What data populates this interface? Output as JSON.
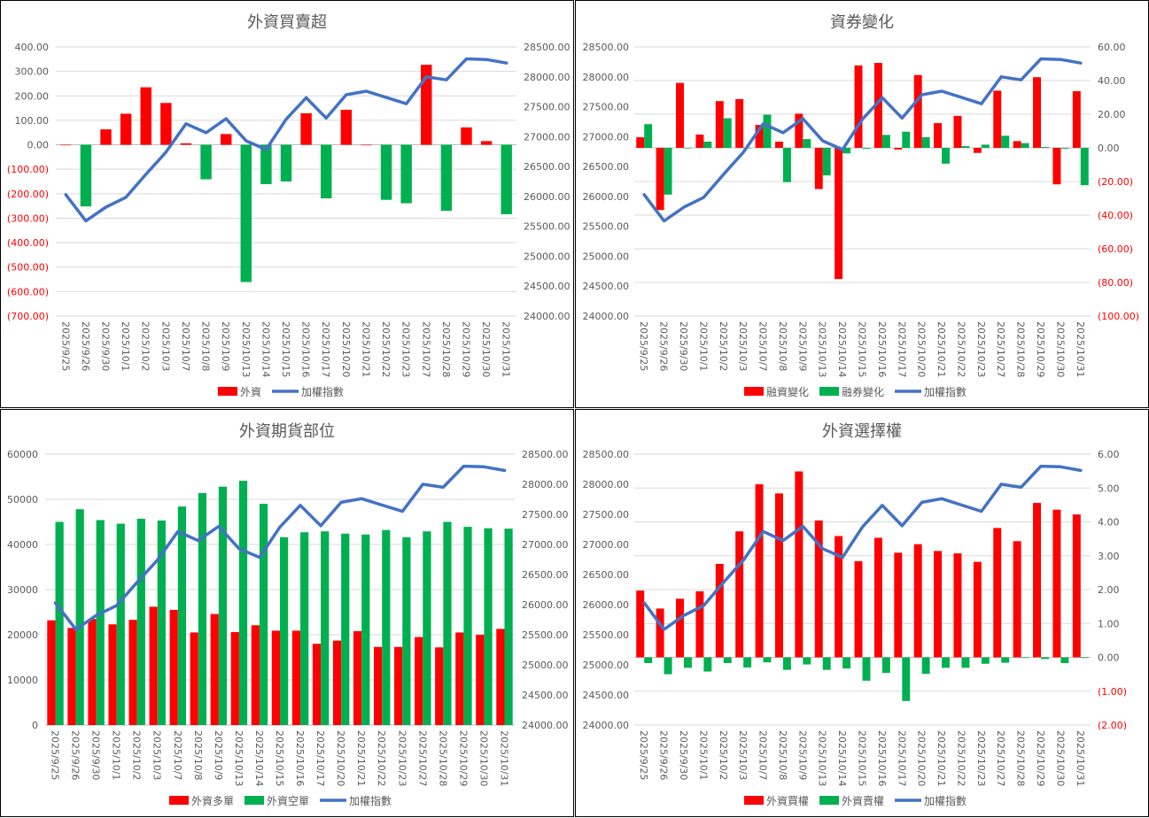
{
  "chart_data": [
    {
      "type": "bar",
      "title": "外資買賣超",
      "categories": [
        "2025/9/25",
        "2025/9/26",
        "2025/9/30",
        "2025/10/1",
        "2025/10/2",
        "2025/10/3",
        "2025/10/7",
        "2025/10/8",
        "2025/10/9",
        "2025/10/13",
        "2025/10/14",
        "2025/10/15",
        "2025/10/16",
        "2025/10/17",
        "2025/10/20",
        "2025/10/21",
        "2025/10/22",
        "2025/10/23",
        "2025/10/27",
        "2025/10/28",
        "2025/10/29",
        "2025/10/30",
        "2025/10/31"
      ],
      "bar_axis": {
        "side": "left",
        "ylim": [
          -700,
          400
        ],
        "ticks": [
          "400.00",
          "300.00",
          "200.00",
          "100.00",
          "0.00",
          "(100.00)",
          "(200.00)",
          "(300.00)",
          "(400.00)",
          "(500.00)",
          "(600.00)",
          "(700.00)"
        ]
      },
      "index_axis": {
        "side": "right",
        "ylim": [
          24000,
          28500
        ],
        "ticks": [
          "28500.00",
          "28000.00",
          "27500.00",
          "27000.00",
          "26500.00",
          "26000.00",
          "25500.00",
          "25000.00",
          "24500.00",
          "24000.00"
        ]
      },
      "bar_series": [
        {
          "name": "外資",
          "color": "#FF0000",
          "signed_colors": true,
          "values": [
            0,
            -252,
            63,
            127,
            235,
            171,
            6,
            -141,
            44,
            -561,
            -161,
            -150,
            129,
            -219,
            143,
            0,
            -225,
            -239,
            327,
            -270,
            71,
            15,
            -284
          ]
        }
      ],
      "line_series": {
        "name": "加權指數",
        "color": "#4472C4",
        "values": [
          26030,
          25590,
          25820,
          25985,
          26370,
          26740,
          27215,
          27065,
          27300,
          26930,
          26785,
          27290,
          27650,
          27310,
          27700,
          27760,
          27655,
          27550,
          28000,
          27950,
          28300,
          28290,
          28230
        ]
      }
    },
    {
      "type": "bar",
      "title": "資券變化",
      "categories": [
        "2025/9/25",
        "2025/9/26",
        "2025/9/30",
        "2025/10/1",
        "2025/10/2",
        "2025/10/3",
        "2025/10/7",
        "2025/10/8",
        "2025/10/9",
        "2025/10/13",
        "2025/10/14",
        "2025/10/15",
        "2025/10/16",
        "2025/10/17",
        "2025/10/20",
        "2025/10/21",
        "2025/10/22",
        "2025/10/23",
        "2025/10/27",
        "2025/10/28",
        "2025/10/29",
        "2025/10/30",
        "2025/10/31"
      ],
      "bar_axis": {
        "side": "right",
        "ylim": [
          -100,
          60
        ],
        "ticks": [
          "60.00",
          "40.00",
          "20.00",
          "0.00",
          "(20.00)",
          "(40.00)",
          "(60.00)",
          "(80.00)",
          "(100.00)"
        ]
      },
      "index_axis": {
        "side": "left",
        "ylim": [
          24000,
          28500
        ],
        "ticks": [
          "28500.00",
          "28000.00",
          "27500.00",
          "27000.00",
          "26500.00",
          "26000.00",
          "25500.00",
          "25000.00",
          "24500.00",
          "24000.00"
        ]
      },
      "bar_series": [
        {
          "name": "融資變化",
          "color": "#FF0000",
          "values": [
            6.3,
            -37,
            38.6,
            7.9,
            27.8,
            29,
            13.6,
            3.7,
            20.3,
            -24.5,
            -78,
            49,
            50.5,
            -1,
            43.3,
            14.7,
            19,
            -3,
            34,
            4,
            42,
            -21.7,
            33.7
          ]
        },
        {
          "name": "融券變化",
          "color": "#00B050",
          "values": [
            14.1,
            -27.8,
            0,
            3.7,
            17.6,
            0,
            19.7,
            -20.4,
            5.2,
            -16.4,
            -3.3,
            -0.5,
            7.7,
            9.6,
            6.3,
            -9.4,
            1,
            1.9,
            7.2,
            2.8,
            0.5,
            -0.5,
            -22.2
          ]
        }
      ],
      "line_series": {
        "name": "加權指數",
        "color": "#4472C4",
        "values": [
          26030,
          25590,
          25820,
          25985,
          26370,
          26740,
          27215,
          27065,
          27300,
          26930,
          26785,
          27290,
          27650,
          27310,
          27700,
          27760,
          27655,
          27550,
          28000,
          27950,
          28300,
          28290,
          28230
        ]
      }
    },
    {
      "type": "bar",
      "title": "外資期貨部位",
      "categories": [
        "2025/9/25",
        "2025/9/26",
        "2025/9/30",
        "2025/10/1",
        "2025/10/2",
        "2025/10/3",
        "2025/10/7",
        "2025/10/8",
        "2025/10/9",
        "2025/10/13",
        "2025/10/14",
        "2025/10/15",
        "2025/10/16",
        "2025/10/17",
        "2025/10/20",
        "2025/10/21",
        "2025/10/22",
        "2025/10/23",
        "2025/10/27",
        "2025/10/28",
        "2025/10/29",
        "2025/10/30",
        "2025/10/31"
      ],
      "bar_axis": {
        "side": "left",
        "ylim": [
          0,
          60000
        ],
        "ticks": [
          "60000",
          "50000",
          "40000",
          "30000",
          "20000",
          "10000",
          "0"
        ]
      },
      "index_axis": {
        "side": "right",
        "ylim": [
          24000,
          28500
        ],
        "ticks": [
          "28500.00",
          "28000.00",
          "27500.00",
          "27000.00",
          "26500.00",
          "26000.00",
          "25500.00",
          "25000.00",
          "24500.00",
          "24000.00"
        ]
      },
      "bar_series": [
        {
          "name": "外資多單",
          "color": "#FF0000",
          "values": [
            23200,
            21500,
            23500,
            22300,
            23300,
            26200,
            25500,
            20500,
            24600,
            20600,
            22100,
            20900,
            20900,
            18000,
            18700,
            20800,
            17300,
            17300,
            19500,
            17200,
            20500,
            20000,
            21300
          ]
        },
        {
          "name": "外資空單",
          "color": "#00B050",
          "values": [
            45000,
            47800,
            45400,
            44600,
            45700,
            45300,
            48400,
            51400,
            52800,
            54100,
            49000,
            41600,
            42700,
            42900,
            42400,
            42200,
            43200,
            41600,
            42900,
            45000,
            43900,
            43600,
            43500
          ]
        }
      ],
      "line_series": {
        "name": "加權指數",
        "color": "#4472C4",
        "values": [
          26030,
          25590,
          25820,
          25985,
          26370,
          26740,
          27215,
          27065,
          27300,
          26930,
          26785,
          27290,
          27650,
          27310,
          27700,
          27760,
          27655,
          27550,
          28000,
          27950,
          28300,
          28290,
          28230
        ]
      }
    },
    {
      "type": "bar",
      "title": "外資選擇權",
      "categories": [
        "2025/9/25",
        "2025/9/26",
        "2025/9/30",
        "2025/10/1",
        "2025/10/2",
        "2025/10/3",
        "2025/10/7",
        "2025/10/8",
        "2025/10/9",
        "2025/10/13",
        "2025/10/14",
        "2025/10/15",
        "2025/10/16",
        "2025/10/17",
        "2025/10/20",
        "2025/10/21",
        "2025/10/22",
        "2025/10/23",
        "2025/10/27",
        "2025/10/28",
        "2025/10/29",
        "2025/10/30",
        "2025/10/31"
      ],
      "bar_axis": {
        "side": "right",
        "ylim": [
          -2,
          6
        ],
        "ticks": [
          "6.00",
          "5.00",
          "4.00",
          "3.00",
          "2.00",
          "1.00",
          "0.00",
          "(1.00)",
          "(2.00)"
        ]
      },
      "index_axis": {
        "side": "left",
        "ylim": [
          24000,
          28500
        ],
        "ticks": [
          "28500.00",
          "28000.00",
          "27500.00",
          "27000.00",
          "26500.00",
          "26000.00",
          "25500.00",
          "25000.00",
          "24500.00",
          "24000.00"
        ]
      },
      "bar_series": [
        {
          "name": "外資買權",
          "color": "#FF0000",
          "values": [
            1.97,
            1.44,
            1.73,
            1.95,
            2.76,
            3.72,
            5.11,
            4.84,
            5.49,
            4.04,
            3.58,
            2.84,
            3.53,
            3.09,
            3.34,
            3.14,
            3.07,
            2.82,
            3.82,
            3.43,
            4.56,
            4.36,
            4.22
          ]
        },
        {
          "name": "外資賣權",
          "color": "#00B050",
          "values": [
            -0.17,
            -0.5,
            -0.31,
            -0.42,
            -0.17,
            -0.3,
            -0.15,
            -0.37,
            -0.21,
            -0.37,
            -0.33,
            -0.69,
            -0.46,
            -1.29,
            -0.49,
            -0.31,
            -0.31,
            -0.19,
            -0.16,
            -0.02,
            -0.05,
            -0.17,
            -0.02
          ]
        }
      ],
      "line_series": {
        "name": "加權指數",
        "color": "#4472C4",
        "values": [
          26030,
          25590,
          25820,
          25985,
          26370,
          26740,
          27215,
          27065,
          27300,
          26930,
          26785,
          27290,
          27650,
          27310,
          27700,
          27760,
          27655,
          27550,
          28000,
          27950,
          28300,
          28290,
          28230
        ]
      }
    }
  ]
}
